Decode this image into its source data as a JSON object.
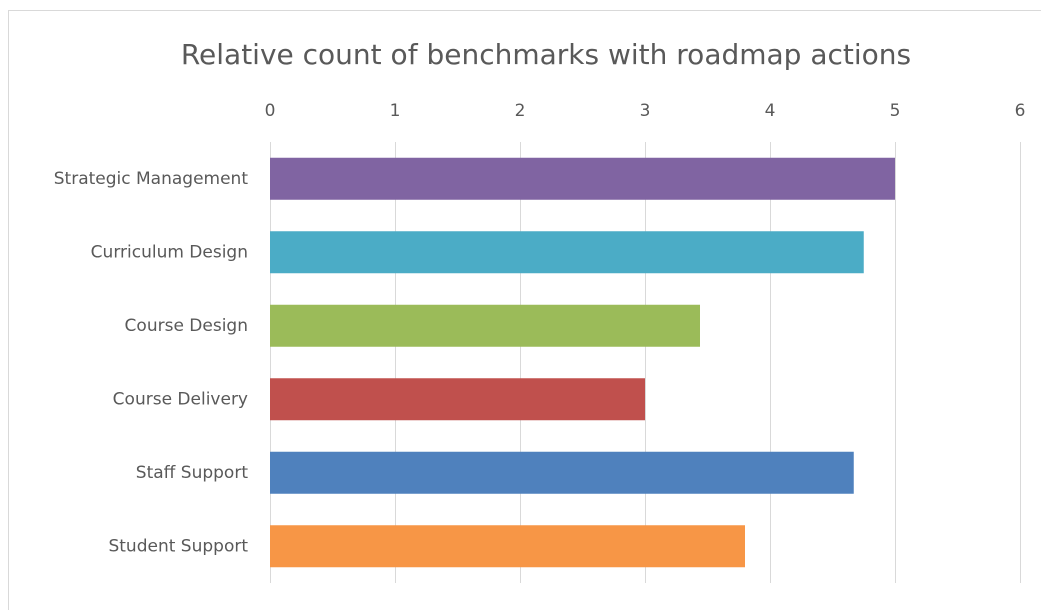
{
  "chart_data": {
    "type": "bar",
    "orientation": "horizontal",
    "title": "Relative count of benchmarks with roadmap actions",
    "categories": [
      "Strategic Management",
      "Curriculum Design",
      "Course Design",
      "Course Delivery",
      "Staff Support",
      "Student Support"
    ],
    "values": [
      5,
      4.75,
      3.44,
      3,
      4.67,
      3.8
    ],
    "colors": [
      "#8064a2",
      "#4bacc6",
      "#9bbb59",
      "#c0504d",
      "#4f81bd",
      "#f79646"
    ],
    "xlim": [
      0,
      6
    ],
    "xticks": [
      0,
      1,
      2,
      3,
      4,
      5,
      6
    ],
    "grid": true
  }
}
